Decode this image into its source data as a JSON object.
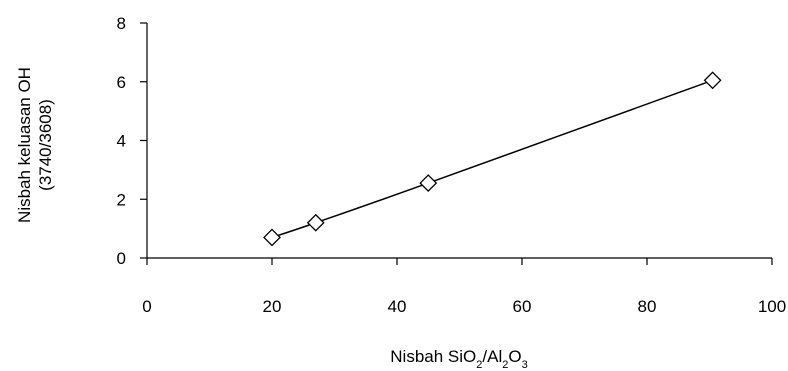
{
  "chart_data": {
    "type": "scatter",
    "title": "",
    "xlabel": {
      "parts": [
        {
          "text": "Nisbah SiO",
          "sub": false
        },
        {
          "text": "2",
          "sub": true
        },
        {
          "text": "/Al",
          "sub": false
        },
        {
          "text": "2",
          "sub": true
        },
        {
          "text": "O",
          "sub": false
        },
        {
          "text": "3",
          "sub": true
        }
      ]
    },
    "ylabel_lines": [
      "Nisbah keluasan OH",
      "(3740/3608)"
    ],
    "xlim": [
      0,
      100
    ],
    "ylim": [
      0,
      8
    ],
    "xticks": [
      0,
      20,
      40,
      60,
      80,
      100
    ],
    "yticks": [
      0,
      2,
      4,
      6,
      8
    ],
    "grid": false,
    "marker": "diamond-open",
    "line": "smooth",
    "color": "#000000",
    "series": [
      {
        "x": [
          20,
          27,
          45,
          90.5
        ],
        "y": [
          0.7,
          1.2,
          2.55,
          6.05
        ]
      }
    ]
  }
}
